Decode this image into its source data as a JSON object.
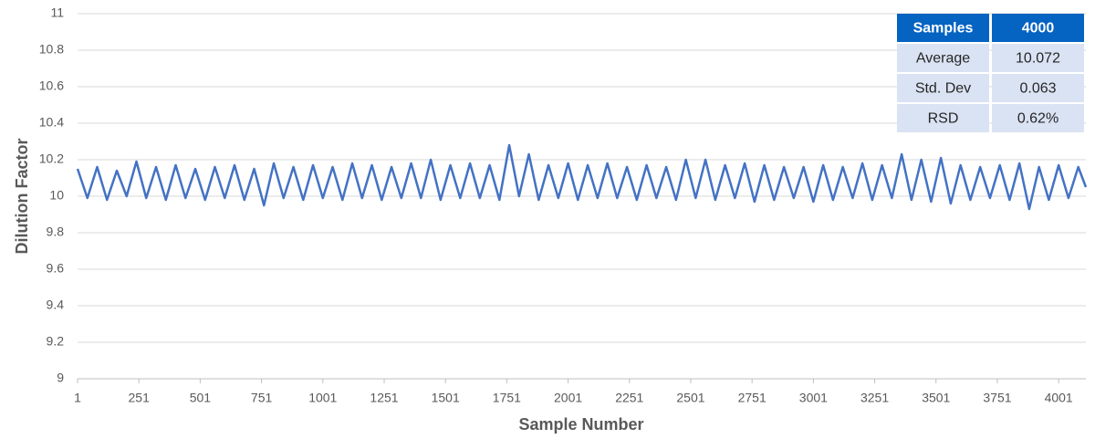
{
  "chart_data": {
    "type": "line",
    "xlabel": "Sample Number",
    "ylabel": "Dilution Factor",
    "x": [
      1,
      41,
      81,
      121,
      161,
      201,
      241,
      281,
      321,
      361,
      401,
      441,
      481,
      521,
      561,
      601,
      641,
      681,
      721,
      761,
      801,
      841,
      881,
      921,
      961,
      1001,
      1041,
      1081,
      1121,
      1161,
      1201,
      1241,
      1281,
      1321,
      1361,
      1401,
      1441,
      1481,
      1521,
      1561,
      1601,
      1641,
      1681,
      1721,
      1761,
      1801,
      1841,
      1881,
      1921,
      1961,
      2001,
      2041,
      2081,
      2121,
      2161,
      2201,
      2241,
      2281,
      2321,
      2361,
      2401,
      2441,
      2481,
      2521,
      2561,
      2601,
      2641,
      2681,
      2721,
      2761,
      2801,
      2841,
      2881,
      2921,
      2961,
      3001,
      3041,
      3081,
      3121,
      3161,
      3201,
      3241,
      3281,
      3321,
      3361,
      3401,
      3441,
      3481,
      3521,
      3561,
      3601,
      3641,
      3681,
      3721,
      3761,
      3801,
      3841,
      3881,
      3921,
      3961,
      4001,
      4041,
      4081,
      4112
    ],
    "values": [
      10.15,
      9.99,
      10.16,
      9.98,
      10.14,
      10.0,
      10.19,
      9.99,
      10.16,
      9.98,
      10.17,
      9.99,
      10.15,
      9.98,
      10.16,
      9.99,
      10.17,
      9.98,
      10.15,
      9.95,
      10.18,
      9.99,
      10.16,
      9.98,
      10.17,
      9.99,
      10.16,
      9.98,
      10.18,
      9.99,
      10.17,
      9.98,
      10.16,
      9.99,
      10.18,
      9.99,
      10.2,
      9.98,
      10.17,
      9.99,
      10.18,
      9.99,
      10.17,
      9.98,
      10.28,
      10.0,
      10.23,
      9.98,
      10.17,
      9.99,
      10.18,
      9.98,
      10.17,
      9.99,
      10.18,
      9.99,
      10.16,
      9.98,
      10.17,
      9.99,
      10.16,
      9.98,
      10.2,
      9.99,
      10.2,
      9.98,
      10.17,
      9.99,
      10.18,
      9.97,
      10.17,
      9.98,
      10.16,
      9.99,
      10.16,
      9.97,
      10.17,
      9.98,
      10.16,
      9.99,
      10.18,
      9.98,
      10.17,
      9.99,
      10.23,
      9.98,
      10.2,
      9.97,
      10.21,
      9.96,
      10.17,
      9.98,
      10.16,
      9.99,
      10.17,
      9.98,
      10.18,
      9.93,
      10.16,
      9.98,
      10.17,
      9.99,
      10.16,
      10.05
    ],
    "color": "#4472c4",
    "xlim": [
      1,
      4112
    ],
    "xticks": [
      1,
      251,
      501,
      751,
      1001,
      1251,
      1501,
      1751,
      2001,
      2251,
      2501,
      2751,
      3001,
      3251,
      3501,
      3751,
      4001
    ],
    "ylim": [
      9,
      11
    ],
    "yticks": [
      9,
      9.2,
      9.4,
      9.6,
      9.8,
      10,
      10.2,
      10.4,
      10.6,
      10.8,
      11
    ],
    "grid": true,
    "table": {
      "columns": [
        "Samples",
        "4000"
      ],
      "rows": [
        [
          "Average",
          "10.072"
        ],
        [
          "Std. Dev",
          "0.063"
        ],
        [
          "RSD",
          "0.62%"
        ]
      ]
    }
  }
}
